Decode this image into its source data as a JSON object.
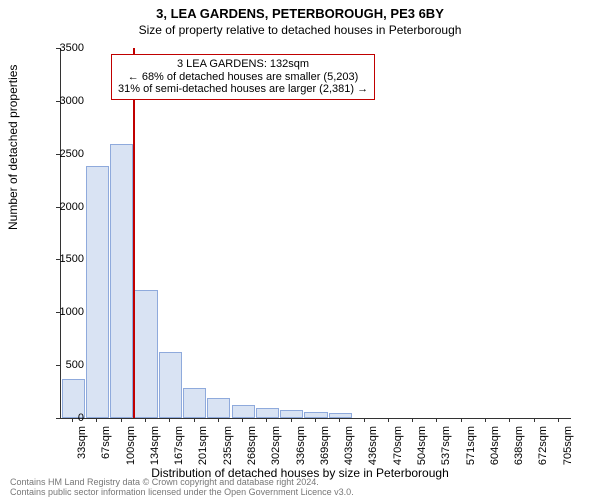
{
  "header": {
    "title": "3, LEA GARDENS, PETERBOROUGH, PE3 6BY",
    "subtitle": "Size of property relative to detached houses in Peterborough"
  },
  "chart": {
    "type": "bar",
    "ylabel": "Number of detached properties",
    "xlabel": "Distribution of detached houses by size in Peterborough",
    "title_fontsize": 13,
    "subtitle_fontsize": 12,
    "label_fontsize": 12,
    "tick_fontsize": 11,
    "ylim": [
      0,
      3500
    ],
    "ytick_step": 500,
    "yticks": [
      0,
      500,
      1000,
      1500,
      2000,
      2500,
      3000,
      3500
    ],
    "categories": [
      "33sqm",
      "67sqm",
      "100sqm",
      "134sqm",
      "167sqm",
      "201sqm",
      "235sqm",
      "268sqm",
      "302sqm",
      "336sqm",
      "369sqm",
      "403sqm",
      "436sqm",
      "470sqm",
      "504sqm",
      "537sqm",
      "571sqm",
      "604sqm",
      "638sqm",
      "672sqm",
      "705sqm"
    ],
    "values": [
      370,
      2380,
      2590,
      1215,
      620,
      280,
      190,
      120,
      95,
      80,
      60,
      50,
      0,
      0,
      0,
      0,
      0,
      0,
      0,
      0,
      0
    ],
    "bar_fill_color": "#d9e3f3",
    "bar_border_color": "#8faadc",
    "bar_width": 0.95,
    "background_color": "#ffffff",
    "axis_color": "#333333",
    "marker": {
      "x_category_index": 2.97,
      "color": "#c00000"
    },
    "info_box": {
      "line1": "3 LEA GARDENS: 132sqm",
      "line2": "← 68% of detached houses are smaller (5,203)",
      "line3": "31% of semi-detached houses are larger (2,381) →",
      "border_color": "#c00000",
      "fontsize": 11
    }
  },
  "footer": {
    "line1": "Contains HM Land Registry data © Crown copyright and database right 2024.",
    "line2": "Contains public sector information licensed under the Open Government Licence v3.0.",
    "fontsize": 9
  }
}
